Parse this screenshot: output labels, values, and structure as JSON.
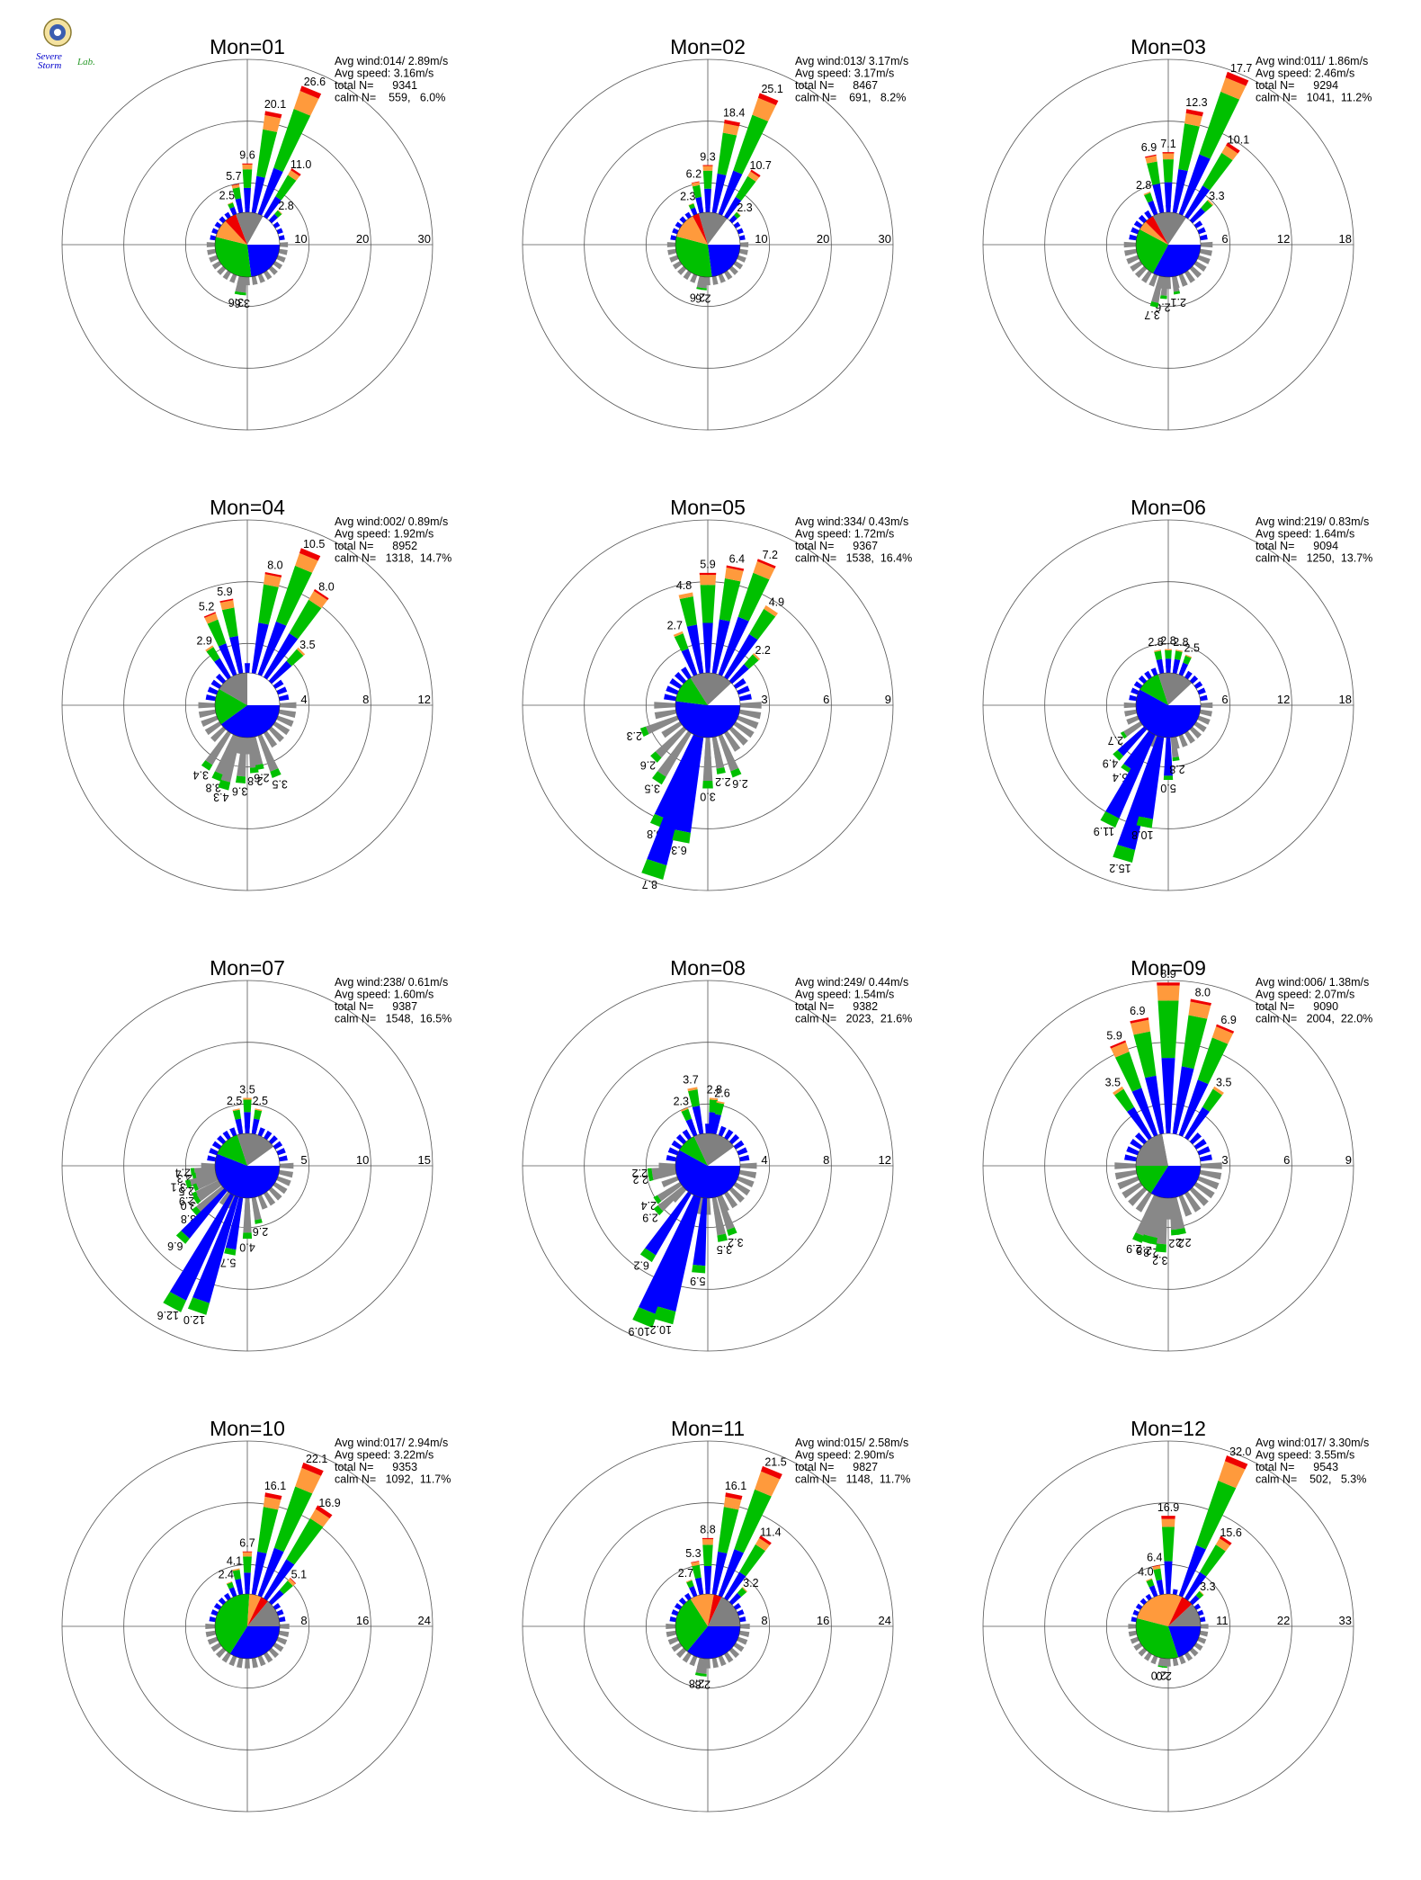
{
  "colors": {
    "speed_bins": [
      "#0000ff",
      "#00c000",
      "#ff9a3c",
      "#ee0000",
      "#cc00cc"
    ],
    "calm_pie": [
      "#0000ff",
      "#00c000",
      "#ff9a3c",
      "#ee0000",
      "#808080",
      "#ffffff"
    ],
    "grid": "#555555",
    "south_half_bars": "#888888"
  },
  "logo": {
    "icon": "severe-storm-lab-seal-icon",
    "text_severe": "Severe",
    "text_storm": "Storm",
    "text_lab": "Lab."
  },
  "chart_data": [
    {
      "type": "windrose",
      "title": "Mon=01",
      "avg_wind": "Avg wind:014/ 2.89m/s",
      "avg_speed": "Avg speed: 3.16m/s",
      "total_n": "total N=      9341",
      "calm_n": "calm N=    559,   6.0%",
      "rings": [
        10,
        20,
        30
      ],
      "calm_pie": [
        30,
        40,
        12,
        8,
        18,
        22
      ],
      "bars": [
        {
          "dir": 337.5,
          "value": 2.5,
          "label": "2.5"
        },
        {
          "dir": 348.75,
          "value": 5.7,
          "label": "5.7"
        },
        {
          "dir": 0,
          "value": 9.6,
          "label": "9.6"
        },
        {
          "dir": 11.25,
          "value": 20.1,
          "label": "20.1"
        },
        {
          "dir": 22.5,
          "value": 26.6,
          "label": "26.6"
        },
        {
          "dir": 33.75,
          "value": 11.0,
          "label": "11.0"
        },
        {
          "dir": 45,
          "value": 2.8,
          "label": "2.8"
        },
        {
          "dir": 185,
          "value": 3.6,
          "label": "3.6"
        },
        {
          "dir": 191,
          "value": 3.6,
          "label": "3.6"
        }
      ]
    },
    {
      "type": "windrose",
      "title": "Mon=02",
      "avg_wind": "Avg wind:013/ 3.17m/s",
      "avg_speed": "Avg speed: 3.17m/s",
      "total_n": "total N=      8467",
      "calm_n": "calm N=    691,   8.2%",
      "rings": [
        10,
        20,
        30
      ],
      "calm_pie": [
        28,
        38,
        16,
        4,
        18,
        18
      ],
      "bars": [
        {
          "dir": 337.5,
          "value": 2.3,
          "label": "2.3"
        },
        {
          "dir": 348.75,
          "value": 6.2,
          "label": "6.2"
        },
        {
          "dir": 0,
          "value": 9.3,
          "label": "9.3"
        },
        {
          "dir": 11.25,
          "value": 18.4,
          "label": "18.4"
        },
        {
          "dir": 22.5,
          "value": 25.1,
          "label": "25.1"
        },
        {
          "dir": 33.75,
          "value": 10.7,
          "label": "10.7"
        },
        {
          "dir": 45,
          "value": 2.3,
          "label": "2.3"
        },
        {
          "dir": 185,
          "value": 2.6,
          "label": "2.6"
        },
        {
          "dir": 191,
          "value": 2.6,
          "label": "2.6"
        }
      ]
    },
    {
      "type": "windrose",
      "title": "Mon=03",
      "avg_wind": "Avg wind:011/ 1.86m/s",
      "avg_speed": "Avg speed: 2.46m/s",
      "total_n": "total N=      9294",
      "calm_n": "calm N=   1041,  11.2%",
      "rings": [
        6,
        12,
        18
      ],
      "calm_pie": [
        42,
        32,
        6,
        6,
        22,
        20
      ],
      "bars": [
        {
          "dir": 337.5,
          "value": 2.8,
          "label": "2.8"
        },
        {
          "dir": 348.75,
          "value": 6.9,
          "label": "6.9"
        },
        {
          "dir": 0,
          "value": 7.1,
          "label": "7.1"
        },
        {
          "dir": 11.25,
          "value": 12.3,
          "label": "12.3"
        },
        {
          "dir": 22.5,
          "value": 17.7,
          "label": "17.7"
        },
        {
          "dir": 33.75,
          "value": 10.1,
          "label": "10.1"
        },
        {
          "dir": 45,
          "value": 3.3,
          "label": "3.3"
        },
        {
          "dir": 185,
          "value": 2.6,
          "label": "2.6"
        },
        {
          "dir": 193,
          "value": 3.7,
          "label": "3.7"
        },
        {
          "dir": 170,
          "value": 2.1,
          "label": "2.1"
        }
      ]
    },
    {
      "type": "windrose",
      "title": "Mon=04",
      "avg_wind": "Avg wind:002/ 0.89m/s",
      "avg_speed": "Avg speed: 1.92m/s",
      "total_n": "total N=      8952",
      "calm_n": "calm N=   1318,  14.7%",
      "rings": [
        4,
        8,
        12
      ],
      "calm_pie": [
        48,
        22,
        0,
        0,
        20,
        30
      ],
      "bars": [
        {
          "dir": 326.25,
          "value": 2.9,
          "label": "2.9"
        },
        {
          "dir": 337.5,
          "value": 5.2,
          "label": "5.2"
        },
        {
          "dir": 348.75,
          "value": 5.9,
          "label": "5.9"
        },
        {
          "dir": 11.25,
          "value": 8.0,
          "label": "8.0"
        },
        {
          "dir": 22.5,
          "value": 10.5,
          "label": "10.5"
        },
        {
          "dir": 33.75,
          "value": 8.0,
          "label": "8.0"
        },
        {
          "dir": 45,
          "value": 3.5,
          "label": "3.5"
        },
        {
          "dir": 213.75,
          "value": 3.4,
          "label": "3.4"
        },
        {
          "dir": 202.5,
          "value": 3.8,
          "label": "3.8"
        },
        {
          "dir": 196,
          "value": 4.3,
          "label": "4.3"
        },
        {
          "dir": 185,
          "value": 3.6,
          "label": "3.6"
        },
        {
          "dir": 174,
          "value": 2.8,
          "label": "2.8"
        },
        {
          "dir": 168.75,
          "value": 2.6,
          "label": "2.6"
        },
        {
          "dir": 157.5,
          "value": 3.5,
          "label": "3.5"
        }
      ]
    },
    {
      "type": "windrose",
      "title": "Mon=05",
      "avg_wind": "Avg wind:334/ 0.43m/s",
      "avg_speed": "Avg speed: 1.72m/s",
      "total_n": "total N=      9367",
      "calm_n": "calm N=   1538,  16.4%",
      "rings": [
        3,
        6,
        9
      ],
      "calm_pie": [
        52,
        14,
        0,
        0,
        22,
        12
      ],
      "bars": [
        {
          "dir": 337.5,
          "value": 2.7,
          "label": "2.7"
        },
        {
          "dir": 348.75,
          "value": 4.8,
          "label": "4.8"
        },
        {
          "dir": 0,
          "value": 5.9,
          "label": "5.9"
        },
        {
          "dir": 11.25,
          "value": 6.4,
          "label": "6.4"
        },
        {
          "dir": 22.5,
          "value": 7.2,
          "label": "7.2"
        },
        {
          "dir": 33.75,
          "value": 4.9,
          "label": "4.9"
        },
        {
          "dir": 45,
          "value": 2.2,
          "label": "2.2"
        },
        {
          "dir": 247.5,
          "value": 2.3,
          "label": "2.3"
        },
        {
          "dir": 225,
          "value": 2.6,
          "label": "2.6"
        },
        {
          "dir": 213.75,
          "value": 3.5,
          "label": "3.5"
        },
        {
          "dir": 202.5,
          "value": 5.8,
          "label": "5.8"
        },
        {
          "dir": 198,
          "value": 8.7,
          "label": "8.7"
        },
        {
          "dir": 191.25,
          "value": 6.3,
          "label": "6.3"
        },
        {
          "dir": 180,
          "value": 3.0,
          "label": "3.0"
        },
        {
          "dir": 168.75,
          "value": 2.2,
          "label": "2.2"
        },
        {
          "dir": 157.5,
          "value": 2.6,
          "label": "2.6"
        }
      ]
    },
    {
      "type": "windrose",
      "title": "Mon=06",
      "avg_wind": "Avg wind:219/ 0.83m/s",
      "avg_speed": "Avg speed: 1.64m/s",
      "total_n": "total N=      9094",
      "calm_n": "calm N=   1250,  13.7%",
      "rings": [
        6,
        12,
        18
      ],
      "calm_pie": [
        58,
        12,
        0,
        0,
        18,
        12
      ],
      "bars": [
        {
          "dir": 348.75,
          "value": 2.8,
          "label": "2.8"
        },
        {
          "dir": 0,
          "value": 2.8,
          "label": "2.8"
        },
        {
          "dir": 11.25,
          "value": 2.8,
          "label": "2.8"
        },
        {
          "dir": 22.5,
          "value": 2.5,
          "label": "2.5"
        },
        {
          "dir": 236.25,
          "value": 2.7,
          "label": "2.7"
        },
        {
          "dir": 225,
          "value": 4.9,
          "label": "4.9"
        },
        {
          "dir": 213.75,
          "value": 5.4,
          "label": "5.4"
        },
        {
          "dir": 207,
          "value": 11.9,
          "label": "11.9"
        },
        {
          "dir": 196.5,
          "value": 15.2,
          "label": "15.2"
        },
        {
          "dir": 191.25,
          "value": 10.8,
          "label": "10.8"
        },
        {
          "dir": 180,
          "value": 5.0,
          "label": "5.0"
        },
        {
          "dir": 172,
          "value": 2.8,
          "label": "2.8"
        }
      ]
    },
    {
      "type": "windrose",
      "title": "Mon=07",
      "avg_wind": "Avg wind:238/ 0.61m/s",
      "avg_speed": "Avg speed: 1.60m/s",
      "total_n": "total N=      9387",
      "calm_n": "calm N=   1548,  16.5%",
      "rings": [
        5,
        10,
        15
      ],
      "calm_pie": [
        56,
        14,
        0,
        0,
        20,
        10
      ],
      "bars": [
        {
          "dir": 348.75,
          "value": 2.5,
          "label": "2.5"
        },
        {
          "dir": 0,
          "value": 3.5,
          "label": "3.5"
        },
        {
          "dir": 11.25,
          "value": 2.5,
          "label": "2.5"
        },
        {
          "dir": 264,
          "value": 2.4,
          "label": "2.4"
        },
        {
          "dir": 258.75,
          "value": 2.3,
          "label": "2.3"
        },
        {
          "dir": 253,
          "value": 3.1,
          "label": "3.1"
        },
        {
          "dir": 247.5,
          "value": 2.5,
          "label": "2.5"
        },
        {
          "dir": 240,
          "value": 2.9,
          "label": "2.9"
        },
        {
          "dir": 236.25,
          "value": 3.0,
          "label": "3.0"
        },
        {
          "dir": 228,
          "value": 3.8,
          "label": "3.8"
        },
        {
          "dir": 222,
          "value": 6.6,
          "label": "6.6"
        },
        {
          "dir": 208,
          "value": 12.6,
          "label": "12.6"
        },
        {
          "dir": 199,
          "value": 12.0,
          "label": "12.0"
        },
        {
          "dir": 191.25,
          "value": 5.7,
          "label": "5.7"
        },
        {
          "dir": 180,
          "value": 4.0,
          "label": "4.0"
        },
        {
          "dir": 168.75,
          "value": 2.6,
          "label": "2.6"
        }
      ]
    },
    {
      "type": "windrose",
      "title": "Mon=08",
      "avg_wind": "Avg wind:249/ 0.44m/s",
      "avg_speed": "Avg speed: 1.54m/s",
      "total_n": "total N=      9382",
      "calm_n": "calm N=   2023,  21.6%",
      "rings": [
        4,
        8,
        12
      ],
      "calm_pie": [
        58,
        10,
        0,
        0,
        22,
        10
      ],
      "bars": [
        {
          "dir": 337.5,
          "value": 2.3,
          "label": "2.3"
        },
        {
          "dir": 348.75,
          "value": 3.7,
          "label": "3.7"
        },
        {
          "dir": 5,
          "value": 2.8,
          "label": "2.8"
        },
        {
          "dir": 11.25,
          "value": 2.6,
          "label": "2.6"
        },
        {
          "dir": 264,
          "value": 2.2,
          "label": "2.2"
        },
        {
          "dir": 258.75,
          "value": 2.2,
          "label": "2.2"
        },
        {
          "dir": 236.25,
          "value": 2.4,
          "label": "2.4"
        },
        {
          "dir": 228,
          "value": 2.9,
          "label": "2.9"
        },
        {
          "dir": 213.75,
          "value": 6.2,
          "label": "6.2"
        },
        {
          "dir": 202.5,
          "value": 10.9,
          "label": "10.9"
        },
        {
          "dir": 196,
          "value": 10.2,
          "label": "10.2"
        },
        {
          "dir": 185,
          "value": 5.9,
          "label": "5.9"
        },
        {
          "dir": 168.75,
          "value": 3.5,
          "label": "3.5"
        },
        {
          "dir": 160,
          "value": 3.2,
          "label": "3.2"
        }
      ]
    },
    {
      "type": "windrose",
      "title": "Mon=09",
      "avg_wind": "Avg wind:006/ 1.38m/s",
      "avg_speed": "Avg speed: 2.07m/s",
      "total_n": "total N=      9090",
      "calm_n": "calm N=   2004,  22.0%",
      "rings": [
        3,
        6,
        9
      ],
      "calm_pie": [
        34,
        16,
        0,
        0,
        22,
        28
      ],
      "bars": [
        {
          "dir": 326.25,
          "value": 3.5,
          "label": "3.5"
        },
        {
          "dir": 337.5,
          "value": 5.9,
          "label": "5.9"
        },
        {
          "dir": 348.75,
          "value": 6.9,
          "label": "6.9"
        },
        {
          "dir": 0,
          "value": 8.9,
          "label": "8.9"
        },
        {
          "dir": 11.25,
          "value": 8.0,
          "label": "8.0"
        },
        {
          "dir": 22.5,
          "value": 6.9,
          "label": "6.9"
        },
        {
          "dir": 33.75,
          "value": 3.5,
          "label": "3.5"
        },
        {
          "dir": 202.5,
          "value": 2.9,
          "label": "2.9"
        },
        {
          "dir": 196,
          "value": 2.8,
          "label": "2.8"
        },
        {
          "dir": 191.25,
          "value": 2.8,
          "label": "2.8"
        },
        {
          "dir": 185,
          "value": 3.2,
          "label": "3.2"
        },
        {
          "dir": 174,
          "value": 2.2,
          "label": "2.2"
        },
        {
          "dir": 168.75,
          "value": 2.2,
          "label": "2.2"
        }
      ]
    },
    {
      "type": "windrose",
      "title": "Mon=10",
      "avg_wind": "Avg wind:017/ 2.94m/s",
      "avg_speed": "Avg speed: 3.22m/s",
      "total_n": "total N=      9353",
      "calm_n": "calm N=   1092,  11.7%",
      "rings": [
        8,
        16,
        24
      ],
      "calm_pie": [
        34,
        42,
        6,
        4,
        14,
        0
      ],
      "bars": [
        {
          "dir": 337.5,
          "value": 2.4,
          "label": "2.4"
        },
        {
          "dir": 348.75,
          "value": 4.1,
          "label": "4.1"
        },
        {
          "dir": 0,
          "value": 6.7,
          "label": "6.7"
        },
        {
          "dir": 11.25,
          "value": 16.1,
          "label": "16.1"
        },
        {
          "dir": 22.5,
          "value": 22.1,
          "label": "22.1"
        },
        {
          "dir": 33.75,
          "value": 16.9,
          "label": "16.9"
        },
        {
          "dir": 45,
          "value": 5.1,
          "label": "5.1"
        }
      ]
    },
    {
      "type": "windrose",
      "title": "Mon=11",
      "avg_wind": "Avg wind:015/ 2.58m/s",
      "avg_speed": "Avg speed: 2.90m/s",
      "total_n": "total N=      9827",
      "calm_n": "calm N=   1148,  11.7%",
      "rings": [
        8,
        16,
        24
      ],
      "calm_pie": [
        36,
        30,
        12,
        4,
        18,
        0
      ],
      "bars": [
        {
          "dir": 337.5,
          "value": 2.7,
          "label": "2.7"
        },
        {
          "dir": 348.75,
          "value": 5.3,
          "label": "5.3"
        },
        {
          "dir": 0,
          "value": 8.8,
          "label": "8.8"
        },
        {
          "dir": 11.25,
          "value": 16.1,
          "label": "16.1"
        },
        {
          "dir": 22.5,
          "value": 21.5,
          "label": "21.5"
        },
        {
          "dir": 33.75,
          "value": 11.4,
          "label": "11.4"
        },
        {
          "dir": 45,
          "value": 3.2,
          "label": "3.2"
        },
        {
          "dir": 185,
          "value": 2.8,
          "label": "2.8"
        },
        {
          "dir": 191,
          "value": 2.8,
          "label": "2.8"
        }
      ]
    },
    {
      "type": "windrose",
      "title": "Mon=12",
      "avg_wind": "Avg wind:017/ 3.30m/s",
      "avg_speed": "Avg speed: 3.55m/s",
      "total_n": "total N=      9543",
      "calm_n": "calm N=    502,   5.3%",
      "rings": [
        11,
        22,
        33
      ],
      "calm_pie": [
        20,
        34,
        28,
        6,
        12,
        0
      ],
      "bars": [
        {
          "dir": 337.5,
          "value": 4.0,
          "label": "4.0"
        },
        {
          "dir": 348.75,
          "value": 6.4,
          "label": "6.4"
        },
        {
          "dir": 0,
          "value": 16.9,
          "label": "16.9"
        },
        {
          "dir": 22.5,
          "value": 32.0,
          "label": "32.0"
        },
        {
          "dir": 33.75,
          "value": 15.6,
          "label": "15.6"
        },
        {
          "dir": 45,
          "value": 3.3,
          "label": "3.3"
        },
        {
          "dir": 185,
          "value": 2.0,
          "label": "2.0"
        },
        {
          "dir": 191,
          "value": 2.0,
          "label": "2.0"
        }
      ]
    }
  ]
}
